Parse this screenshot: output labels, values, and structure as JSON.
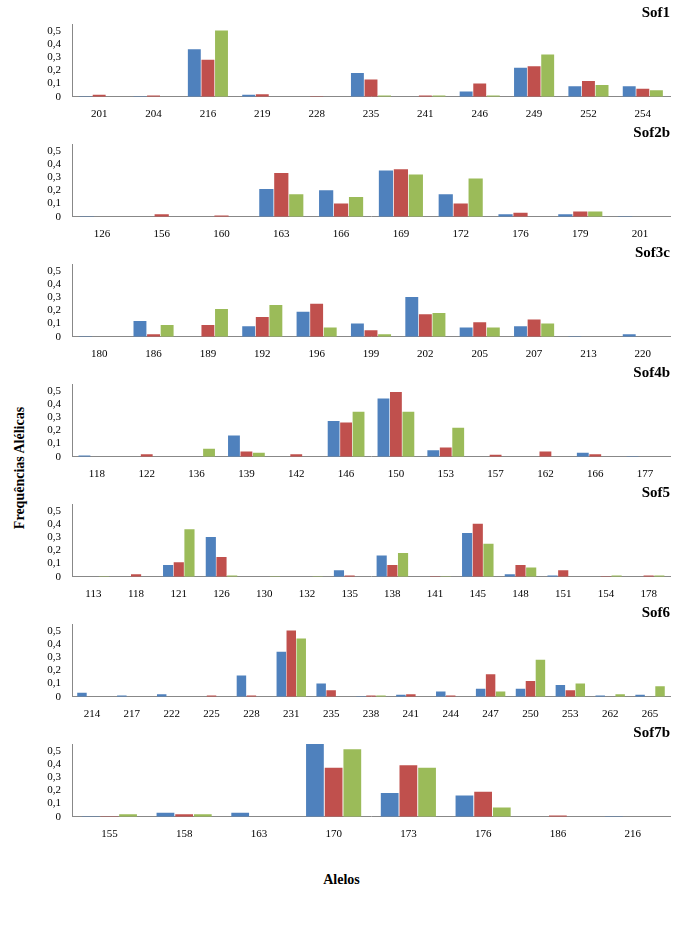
{
  "y_label": "Frequências Alélicas",
  "x_label": "Alelos",
  "chart_data": [
    {
      "type": "bar",
      "title": "Sof1",
      "categories": [
        "201",
        "204",
        "216",
        "219",
        "228",
        "235",
        "241",
        "246",
        "249",
        "252",
        "254"
      ],
      "series": [
        {
          "color": "#4f81bd",
          "values": [
            0.005,
            0.005,
            0.36,
            0.015,
            0,
            0.18,
            0,
            0.04,
            0.22,
            0.08,
            0.08
          ]
        },
        {
          "color": "#c0504d",
          "values": [
            0.015,
            0.01,
            0.28,
            0.02,
            0.005,
            0.13,
            0.01,
            0.1,
            0.23,
            0.12,
            0.06
          ]
        },
        {
          "color": "#9bbb59",
          "values": [
            0,
            0,
            0.5,
            0,
            0,
            0.01,
            0.01,
            0.01,
            0.32,
            0.09,
            0.05
          ]
        }
      ],
      "ylim": [
        0,
        0.55
      ],
      "yticks": [
        0,
        {
          "value": 0.1,
          "label": "0,1"
        },
        {
          "value": 0.2,
          "label": "0,2"
        },
        {
          "value": 0.3,
          "label": "0,3"
        },
        {
          "value": 0.4,
          "label": "0,4"
        },
        {
          "value": 0.5,
          "label": "0,5"
        }
      ],
      "grid": false
    },
    {
      "type": "bar",
      "title": "Sof2b",
      "categories": [
        "126",
        "156",
        "160",
        "163",
        "166",
        "169",
        "172",
        "176",
        "179",
        "201"
      ],
      "series": [
        {
          "color": "#4f81bd",
          "values": [
            0.005,
            0,
            0,
            0.21,
            0.2,
            0.35,
            0.17,
            0.02,
            0.02,
            0.005
          ]
        },
        {
          "color": "#c0504d",
          "values": [
            0,
            0.02,
            0.01,
            0.33,
            0.1,
            0.36,
            0.1,
            0.03,
            0.04,
            0
          ]
        },
        {
          "color": "#9bbb59",
          "values": [
            0,
            0,
            0,
            0.17,
            0.15,
            0.32,
            0.29,
            0,
            0.04,
            0
          ]
        }
      ],
      "ylim": [
        0,
        0.55
      ],
      "yticks": [
        0,
        {
          "value": 0.1,
          "label": "0,1"
        },
        {
          "value": 0.2,
          "label": "0,2"
        },
        {
          "value": 0.3,
          "label": "0,3"
        },
        {
          "value": 0.4,
          "label": "0,4"
        },
        {
          "value": 0.5,
          "label": "0,5"
        }
      ],
      "grid": false
    },
    {
      "type": "bar",
      "title": "Sof3c",
      "categories": [
        "180",
        "186",
        "189",
        "192",
        "196",
        "199",
        "202",
        "205",
        "207",
        "213",
        "220"
      ],
      "series": [
        {
          "color": "#4f81bd",
          "values": [
            0.005,
            0.12,
            0,
            0.08,
            0.19,
            0.1,
            0.3,
            0.07,
            0.08,
            0.005,
            0.02
          ]
        },
        {
          "color": "#c0504d",
          "values": [
            0,
            0.02,
            0.09,
            0.15,
            0.25,
            0.05,
            0.17,
            0.11,
            0.13,
            0,
            0
          ]
        },
        {
          "color": "#9bbb59",
          "values": [
            0,
            0.09,
            0.21,
            0.24,
            0.07,
            0.02,
            0.18,
            0.07,
            0.1,
            0,
            0
          ]
        }
      ],
      "ylim": [
        0,
        0.55
      ],
      "yticks": [
        0,
        {
          "value": 0.1,
          "label": "0,1"
        },
        {
          "value": 0.2,
          "label": "0,2"
        },
        {
          "value": 0.3,
          "label": "0,3"
        },
        {
          "value": 0.4,
          "label": "0,4"
        },
        {
          "value": 0.5,
          "label": "0,5"
        }
      ],
      "grid": false
    },
    {
      "type": "bar",
      "title": "Sof4b",
      "categories": [
        "118",
        "122",
        "136",
        "139",
        "142",
        "146",
        "150",
        "153",
        "157",
        "162",
        "166",
        "177"
      ],
      "series": [
        {
          "color": "#4f81bd",
          "values": [
            0.01,
            0,
            0,
            0.16,
            0,
            0.27,
            0.44,
            0.05,
            0,
            0,
            0.03,
            0.005
          ]
        },
        {
          "color": "#c0504d",
          "values": [
            0,
            0.02,
            0,
            0.04,
            0.02,
            0.26,
            0.49,
            0.07,
            0.015,
            0.04,
            0.02,
            0
          ]
        },
        {
          "color": "#9bbb59",
          "values": [
            0,
            0,
            0.06,
            0.03,
            0,
            0.34,
            0.34,
            0.22,
            0,
            0,
            0,
            0
          ]
        }
      ],
      "ylim": [
        0,
        0.55
      ],
      "yticks": [
        0,
        {
          "value": 0.1,
          "label": "0,1"
        },
        {
          "value": 0.2,
          "label": "0,2"
        },
        {
          "value": 0.3,
          "label": "0,3"
        },
        {
          "value": 0.4,
          "label": "0,4"
        },
        {
          "value": 0.5,
          "label": "0,5"
        }
      ],
      "grid": false
    },
    {
      "type": "bar",
      "title": "Sof5",
      "categories": [
        "113",
        "118",
        "121",
        "126",
        "130",
        "132",
        "135",
        "138",
        "141",
        "145",
        "148",
        "151",
        "154",
        "178"
      ],
      "series": [
        {
          "color": "#4f81bd",
          "values": [
            0,
            0,
            0.09,
            0.3,
            0,
            0,
            0.05,
            0.16,
            0,
            0.33,
            0.02,
            0.01,
            0,
            0
          ]
        },
        {
          "color": "#c0504d",
          "values": [
            0,
            0.02,
            0.11,
            0.15,
            0,
            0,
            0.01,
            0.09,
            0.005,
            0.4,
            0.09,
            0.05,
            0.005,
            0.01
          ]
        },
        {
          "color": "#9bbb59",
          "values": [
            0.005,
            0,
            0.36,
            0.01,
            0.005,
            0.005,
            0,
            0.18,
            0.005,
            0.25,
            0.07,
            0,
            0.01,
            0.01
          ]
        }
      ],
      "ylim": [
        0,
        0.55
      ],
      "yticks": [
        0,
        {
          "value": 0.1,
          "label": "0,1"
        },
        {
          "value": 0.2,
          "label": "0,2"
        },
        {
          "value": 0.3,
          "label": "0,3"
        },
        {
          "value": 0.4,
          "label": "0,4"
        },
        {
          "value": 0.5,
          "label": "0,5"
        }
      ],
      "grid": false
    },
    {
      "type": "bar",
      "title": "Sof6",
      "categories": [
        "214",
        "217",
        "222",
        "225",
        "228",
        "231",
        "235",
        "238",
        "241",
        "244",
        "247",
        "250",
        "253",
        "262",
        "265"
      ],
      "series": [
        {
          "color": "#4f81bd",
          "values": [
            0.03,
            0.01,
            0.02,
            0,
            0.16,
            0.34,
            0.1,
            0.005,
            0.015,
            0.04,
            0.06,
            0.06,
            0.09,
            0.01,
            0.015
          ]
        },
        {
          "color": "#c0504d",
          "values": [
            0,
            0,
            0,
            0.01,
            0.01,
            0.5,
            0.05,
            0.01,
            0.02,
            0.01,
            0.17,
            0.12,
            0.05,
            0,
            0
          ]
        },
        {
          "color": "#9bbb59",
          "values": [
            0,
            0,
            0,
            0,
            0,
            0.44,
            0,
            0.01,
            0,
            0,
            0.04,
            0.28,
            0.1,
            0.02,
            0.08
          ]
        }
      ],
      "ylim": [
        0,
        0.55
      ],
      "yticks": [
        0,
        {
          "value": 0.1,
          "label": "0,1"
        },
        {
          "value": 0.2,
          "label": "0,2"
        },
        {
          "value": 0.3,
          "label": "0,3"
        },
        {
          "value": 0.4,
          "label": "0,4"
        },
        {
          "value": 0.5,
          "label": "0,5"
        }
      ],
      "grid": false
    },
    {
      "type": "bar",
      "title": "Sof7b",
      "categories": [
        "155",
        "158",
        "163",
        "170",
        "173",
        "176",
        "186",
        "216"
      ],
      "series": [
        {
          "color": "#4f81bd",
          "values": [
            0.005,
            0.03,
            0.03,
            0.55,
            0.18,
            0.16,
            0,
            0.005
          ]
        },
        {
          "color": "#c0504d",
          "values": [
            0.005,
            0.02,
            0,
            0.37,
            0.39,
            0.19,
            0.01,
            0
          ]
        },
        {
          "color": "#9bbb59",
          "values": [
            0.02,
            0.02,
            0,
            0.51,
            0.37,
            0.07,
            0,
            0
          ]
        }
      ],
      "ylim": [
        0,
        0.55
      ],
      "yticks": [
        0,
        {
          "value": 0.1,
          "label": "0,1"
        },
        {
          "value": 0.2,
          "label": "0,2"
        },
        {
          "value": 0.3,
          "label": "0,3"
        },
        {
          "value": 0.4,
          "label": "0,4"
        },
        {
          "value": 0.5,
          "label": "0,5"
        }
      ],
      "grid": false
    }
  ]
}
